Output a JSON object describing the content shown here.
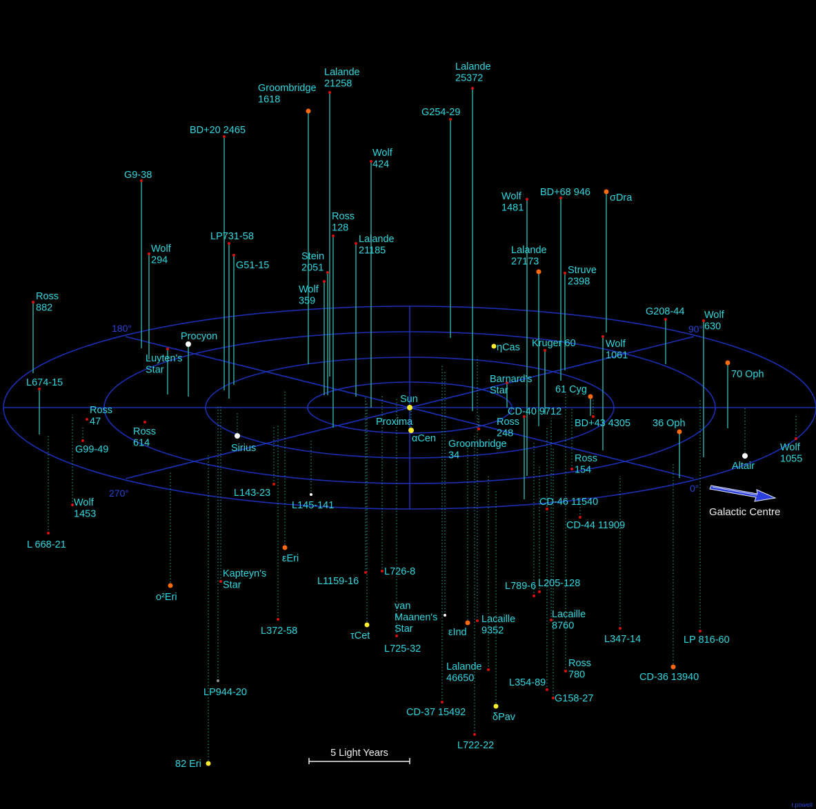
{
  "colors": {
    "background": "#000000",
    "grid": "#1c2fb4",
    "stem_above": "#2a9f95",
    "stem_below": "#2a9f95",
    "label": "#2fd8e0",
    "angle_label": "#2d44d6",
    "arrow": "#2c3fd8",
    "white_text": "#f0f0f0",
    "star_red": "#dd1010",
    "star_orange": "#ff6a10",
    "star_yellow": "#ffee30",
    "star_white": "#ffffff",
    "star_grey": "#909090"
  },
  "grid": {
    "angle_labels": [
      "180°",
      "90°",
      "270°",
      "0°"
    ]
  },
  "galactic_centre_label": "Galactic Centre",
  "scale_bar_label": "5 Light Years",
  "credit": "r.powell",
  "stars": [
    {
      "name": "Sun",
      "lines": [
        "Sun"
      ],
      "color": "yellow",
      "size": 4
    },
    {
      "name": "Proxima / αCen",
      "lines": [
        "Proxima"
      ],
      "color": "yellow",
      "size": 4,
      "extra_label": [
        "αCen"
      ]
    },
    {
      "name": "Groombridge 1618",
      "lines": [
        "Groombridge",
        "1618"
      ],
      "color": "orange",
      "size": 3.5
    },
    {
      "name": "Lalande 21258",
      "lines": [
        "Lalande",
        "21258"
      ],
      "color": "red",
      "size": 2
    },
    {
      "name": "Lalande 25372",
      "lines": [
        "Lalande",
        "25372"
      ],
      "color": "red",
      "size": 2
    },
    {
      "name": "G254-29",
      "lines": [
        "G254-29"
      ],
      "color": "red",
      "size": 2
    },
    {
      "name": "BD+20 2465",
      "lines": [
        "BD+20 2465"
      ],
      "color": "red",
      "size": 2
    },
    {
      "name": "Wolf 424",
      "lines": [
        "Wolf",
        "424"
      ],
      "color": "red",
      "size": 2
    },
    {
      "name": "G9-38",
      "lines": [
        "G9-38"
      ],
      "color": "red",
      "size": 2
    },
    {
      "name": "Ross 128",
      "lines": [
        "Ross",
        "128"
      ],
      "color": "red",
      "size": 2
    },
    {
      "name": "LP731-58",
      "lines": [
        "LP731-58"
      ],
      "color": "red",
      "size": 2
    },
    {
      "name": "Lalande 21185",
      "lines": [
        "Lalande",
        "21185"
      ],
      "color": "red",
      "size": 2
    },
    {
      "name": "Wolf 294",
      "lines": [
        "Wolf",
        "294"
      ],
      "color": "red",
      "size": 2
    },
    {
      "name": "G51-15",
      "lines": [
        "G51-15"
      ],
      "color": "red",
      "size": 2
    },
    {
      "name": "Stein 2051",
      "lines": [
        "Stein",
        "2051"
      ],
      "color": "red",
      "size": 2
    },
    {
      "name": "Wolf 359",
      "lines": [
        "Wolf",
        "359"
      ],
      "color": "red",
      "size": 2
    },
    {
      "name": "Ross 882",
      "lines": [
        "Ross",
        "882"
      ],
      "color": "red",
      "size": 2
    },
    {
      "name": "Wolf 1481",
      "lines": [
        "Wolf",
        "1481"
      ],
      "color": "red",
      "size": 2
    },
    {
      "name": "BD+68 946",
      "lines": [
        "BD+68 946"
      ],
      "color": "red",
      "size": 2
    },
    {
      "name": "σDra",
      "lines": [
        "σDra"
      ],
      "color": "orange",
      "size": 3.5
    },
    {
      "name": "Lalande 27173",
      "lines": [
        "Lalande",
        "27173"
      ],
      "color": "orange",
      "size": 3.5
    },
    {
      "name": "Struve 2398",
      "lines": [
        "Struve",
        "2398"
      ],
      "color": "red",
      "size": 2
    },
    {
      "name": "G208-44",
      "lines": [
        "G208-44"
      ],
      "color": "red",
      "size": 2
    },
    {
      "name": "Wolf 630",
      "lines": [
        "Wolf",
        "630"
      ],
      "color": "red",
      "size": 2
    },
    {
      "name": "Procyon",
      "lines": [
        "Procyon"
      ],
      "color": "white",
      "size": 4
    },
    {
      "name": "Luyten's Star",
      "lines": [
        "Luyten's",
        "Star"
      ],
      "color": "red",
      "size": 2
    },
    {
      "name": "ηCas",
      "lines": [
        "ηCas"
      ],
      "color": "yellow",
      "size": 3.5
    },
    {
      "name": "Kruger 60",
      "lines": [
        "Kruger 60"
      ],
      "color": "red",
      "size": 2
    },
    {
      "name": "Wolf 1061",
      "lines": [
        "Wolf",
        "1061"
      ],
      "color": "red",
      "size": 2
    },
    {
      "name": "70 Oph",
      "lines": [
        "70 Oph"
      ],
      "color": "orange",
      "size": 3.5
    },
    {
      "name": "L674-15",
      "lines": [
        "L674-15"
      ],
      "color": "red",
      "size": 2
    },
    {
      "name": "Barnard's Star",
      "lines": [
        "Barnard's",
        "Star"
      ],
      "color": "red",
      "size": 2
    },
    {
      "name": "61 Cyg",
      "lines": [
        "61 Cyg"
      ],
      "color": "orange",
      "size": 3.5
    },
    {
      "name": "Ross 47",
      "lines": [
        "Ross",
        "47"
      ],
      "color": "red",
      "size": 2
    },
    {
      "name": "CD-40 9712",
      "lines": [
        "CD-40 9712"
      ],
      "color": "red",
      "size": 2
    },
    {
      "name": "BD+43 4305",
      "lines": [
        "BD+43 4305"
      ],
      "color": "red",
      "size": 2
    },
    {
      "name": "Ross 614",
      "lines": [
        "Ross",
        "614"
      ],
      "color": "red",
      "size": 2
    },
    {
      "name": "G99-49",
      "lines": [
        "G99-49"
      ],
      "color": "red",
      "size": 2
    },
    {
      "name": "Sirius",
      "lines": [
        "Sirius"
      ],
      "color": "white",
      "size": 4
    },
    {
      "name": "Ross 248",
      "lines": [
        "Ross",
        "248"
      ],
      "color": "red",
      "size": 2
    },
    {
      "name": "Groombridge 34",
      "lines": [
        "Groombridge",
        "34"
      ],
      "color": "red",
      "size": 2
    },
    {
      "name": "36 Oph",
      "lines": [
        "36 Oph"
      ],
      "color": "orange",
      "size": 3.5
    },
    {
      "name": "Wolf 1055",
      "lines": [
        "Wolf",
        "1055"
      ],
      "color": "red",
      "size": 2
    },
    {
      "name": "Ross 154",
      "lines": [
        "Ross",
        "154"
      ],
      "color": "red",
      "size": 2
    },
    {
      "name": "Altair",
      "lines": [
        "Altair"
      ],
      "color": "white",
      "size": 4
    },
    {
      "name": "L143-23",
      "lines": [
        "L143-23"
      ],
      "color": "red",
      "size": 2
    },
    {
      "name": "L145-141",
      "lines": [
        "L145-141"
      ],
      "color": "white",
      "size": 2
    },
    {
      "name": "Wolf 1453",
      "lines": [
        "Wolf",
        "1453"
      ],
      "color": "red",
      "size": 2
    },
    {
      "name": "CD-46 11540",
      "lines": [
        "CD-46 11540"
      ],
      "color": "red",
      "size": 2
    },
    {
      "name": "CD-44 11909",
      "lines": [
        "CD-44 11909"
      ],
      "color": "red",
      "size": 2
    },
    {
      "name": "L 668-21",
      "lines": [
        "L 668-21"
      ],
      "color": "red",
      "size": 2
    },
    {
      "name": "εEri",
      "lines": [
        "εEri"
      ],
      "color": "orange",
      "size": 3.5
    },
    {
      "name": "L726-8",
      "lines": [
        "L726-8"
      ],
      "color": "red",
      "size": 2
    },
    {
      "name": "L1159-16",
      "lines": [
        "L1159-16"
      ],
      "color": "red",
      "size": 2
    },
    {
      "name": "Kapteyn's Star",
      "lines": [
        "Kapteyn's",
        "Star"
      ],
      "color": "red",
      "size": 2
    },
    {
      "name": "o²Eri",
      "lines": [
        "o²Eri"
      ],
      "color": "orange",
      "size": 3.5
    },
    {
      "name": "L205-128",
      "lines": [
        "L205-128"
      ],
      "color": "red",
      "size": 2
    },
    {
      "name": "L789-6",
      "lines": [
        "L789-6"
      ],
      "color": "red",
      "size": 2
    },
    {
      "name": "van Maanen's Star",
      "lines": [
        "van",
        "Maanen's",
        "Star"
      ],
      "color": "white",
      "size": 2
    },
    {
      "name": "Lacaille 8760",
      "lines": [
        "Lacaille",
        "8760"
      ],
      "color": "red",
      "size": 2
    },
    {
      "name": "τCet",
      "lines": [
        "τCet"
      ],
      "color": "yellow",
      "size": 3.5
    },
    {
      "name": "εInd",
      "lines": [
        "εInd"
      ],
      "color": "orange",
      "size": 3.5
    },
    {
      "name": "Lacaille 9352",
      "lines": [
        "Lacaille",
        "9352"
      ],
      "color": "red",
      "size": 2
    },
    {
      "name": "L372-58",
      "lines": [
        "L372-58"
      ],
      "color": "red",
      "size": 2
    },
    {
      "name": "L347-14",
      "lines": [
        "L347-14"
      ],
      "color": "red",
      "size": 2
    },
    {
      "name": "LP 816-60",
      "lines": [
        "LP 816-60"
      ],
      "color": "red",
      "size": 2
    },
    {
      "name": "L725-32",
      "lines": [
        "L725-32"
      ],
      "color": "red",
      "size": 2
    },
    {
      "name": "Lalande 46650",
      "lines": [
        "Lalande",
        "46650"
      ],
      "color": "red",
      "size": 2
    },
    {
      "name": "Ross 780",
      "lines": [
        "Ross",
        "780"
      ],
      "color": "red",
      "size": 2
    },
    {
      "name": "CD-36 13940",
      "lines": [
        "CD-36 13940"
      ],
      "color": "orange",
      "size": 3.5
    },
    {
      "name": "LP944-20",
      "lines": [
        "LP944-20"
      ],
      "color": "grey",
      "size": 2
    },
    {
      "name": "L354-89",
      "lines": [
        "L354-89"
      ],
      "color": "red",
      "size": 2
    },
    {
      "name": "G158-27",
      "lines": [
        "G158-27"
      ],
      "color": "red",
      "size": 2
    },
    {
      "name": "CD-37 15492",
      "lines": [
        "CD-37 15492"
      ],
      "color": "red",
      "size": 2
    },
    {
      "name": "δPav",
      "lines": [
        "δPav"
      ],
      "color": "yellow",
      "size": 3.5
    },
    {
      "name": "L722-22",
      "lines": [
        "L722-22"
      ],
      "color": "red",
      "size": 2
    },
    {
      "name": "82 Eri",
      "lines": [
        "82 Eri"
      ],
      "color": "yellow",
      "size": 3.5
    }
  ]
}
